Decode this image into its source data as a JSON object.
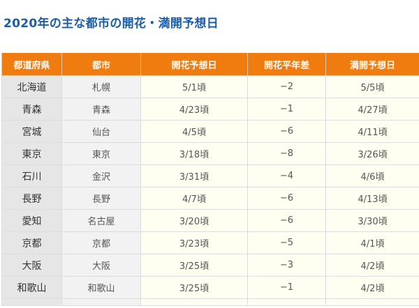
{
  "title": "2020年の主な都市の開花・満開予想日",
  "table": {
    "headers": [
      "都道府県",
      "都市",
      "開花予想日",
      "開花平年差",
      "満開予想日"
    ],
    "rows": [
      {
        "pref": "北海道",
        "city": "札幌",
        "kaika": "5/1頃",
        "diff": "−2",
        "mankai": "5/5頃"
      },
      {
        "pref": "青森",
        "city": "青森",
        "kaika": "4/23頃",
        "diff": "−1",
        "mankai": "4/27頃"
      },
      {
        "pref": "宮城",
        "city": "仙台",
        "kaika": "4/5頃",
        "diff": "−6",
        "mankai": "4/11頃"
      },
      {
        "pref": "東京",
        "city": "東京",
        "kaika": "3/18頃",
        "diff": "−8",
        "mankai": "3/26頃"
      },
      {
        "pref": "石川",
        "city": "金沢",
        "kaika": "3/31頃",
        "diff": "−4",
        "mankai": "4/6頃"
      },
      {
        "pref": "長野",
        "city": "長野",
        "kaika": "4/7頃",
        "diff": "−6",
        "mankai": "4/13頃"
      },
      {
        "pref": "愛知",
        "city": "名古屋",
        "kaika": "3/20頃",
        "diff": "−6",
        "mankai": "3/30頃"
      },
      {
        "pref": "京都",
        "city": "京都",
        "kaika": "3/23頃",
        "diff": "−5",
        "mankai": "4/1頃"
      },
      {
        "pref": "大阪",
        "city": "大阪",
        "kaika": "3/25頃",
        "diff": "−3",
        "mankai": "4/2頃"
      },
      {
        "pref": "和歌山",
        "city": "和歌山",
        "kaika": "3/25頃",
        "diff": "−1",
        "mankai": "4/2頃"
      }
    ]
  }
}
